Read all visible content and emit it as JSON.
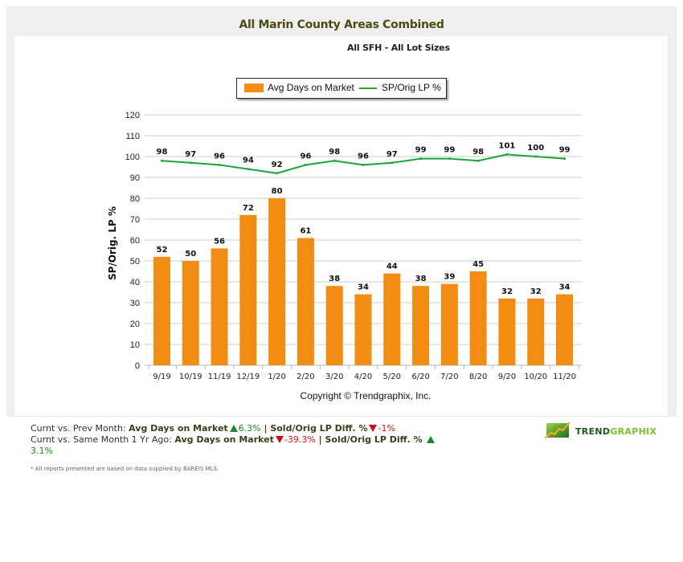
{
  "page": {
    "title": "All Marin County Areas Combined",
    "subtitle": "All SFH - All Lot Sizes",
    "copyright": "Copyright © Trendgraphix, Inc."
  },
  "legend": {
    "items": [
      {
        "label": "Avg Days on Market",
        "color": "#f28c12",
        "kind": "bar"
      },
      {
        "label": "SP/Orig LP %",
        "color": "#1ca63a",
        "kind": "line"
      }
    ]
  },
  "chart_data": {
    "type": "bar",
    "title": "All Marin County Areas Combined",
    "subtitle": "All SFH - All Lot Sizes",
    "xlabel": "",
    "ylabel": "SP/Orig. LP %",
    "ylim": [
      0,
      120
    ],
    "yticks": [
      0,
      10,
      20,
      30,
      40,
      50,
      60,
      70,
      80,
      90,
      100,
      110,
      120
    ],
    "grid": true,
    "legend_position": "top-center",
    "categories": [
      "9/19",
      "10/19",
      "11/19",
      "12/19",
      "1/20",
      "2/20",
      "3/20",
      "4/20",
      "5/20",
      "6/20",
      "7/20",
      "8/20",
      "9/20",
      "10/20",
      "11/20"
    ],
    "series": [
      {
        "name": "Avg Days on Market",
        "type": "bar",
        "color": "#f28c12",
        "values": [
          52,
          50,
          56,
          72,
          80,
          61,
          38,
          34,
          44,
          38,
          39,
          45,
          32,
          32,
          34
        ]
      },
      {
        "name": "SP/Orig LP %",
        "type": "line",
        "color": "#1ca63a",
        "values": [
          98,
          97,
          96,
          94,
          92,
          96,
          98,
          96,
          97,
          99,
          99,
          98,
          101,
          100,
          99
        ]
      }
    ]
  },
  "stats": {
    "line1": {
      "prefix": "Curnt vs. Prev Month: ",
      "m1_label": "Avg Days on Market",
      "m1_dir": "up",
      "m1_value": "6.3%",
      "sep": " | ",
      "m2_label": "Sold/Orig LP Diff. %",
      "m2_dir": "down",
      "m2_value": "-1%"
    },
    "line2": {
      "prefix": "Curnt vs. Same Month 1 Yr Ago: ",
      "m1_label": "Avg Days on Market",
      "m1_dir": "down",
      "m1_value": "-39.3%",
      "sep": " | ",
      "m2_label": "Sold/Orig LP Diff. %",
      "m2_dir": "up",
      "m2_value": "3.1%"
    }
  },
  "footnote": "* All reports presented are based on data supplied by BAREIS MLS.",
  "logo": {
    "word_dark": "TREND",
    "word_light": "GRAPHIX",
    "icon": "rising-chart-logo-icon"
  }
}
